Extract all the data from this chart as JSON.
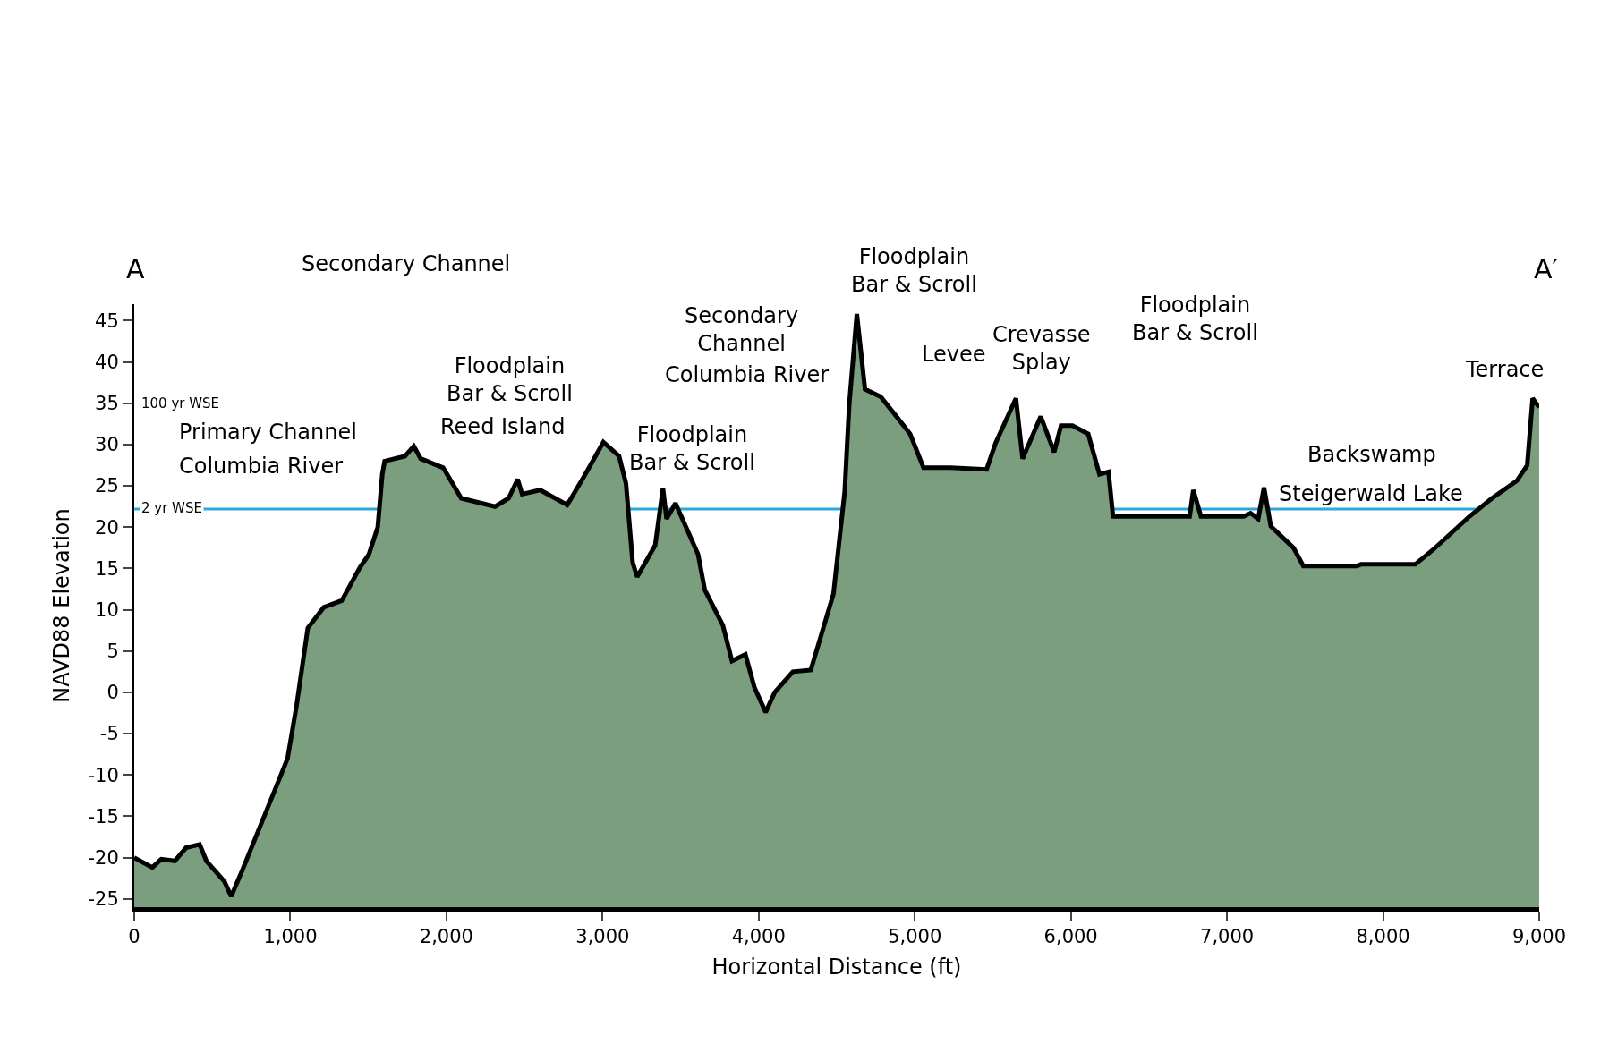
{
  "chart_data": {
    "type": "area",
    "xlabel": "Horizontal Distance (ft)",
    "ylabel": "NAVD88 Elevation",
    "color": "#7a9e7e",
    "x": [
      0,
      116,
      173,
      260,
      332,
      419,
      462,
      578,
      621,
      693,
      867,
      982,
      1040,
      1112,
      1214,
      1329,
      1445,
      1503,
      1560,
      1589,
      1604,
      1734,
      1791,
      1835,
      1979,
      2095,
      2312,
      2398,
      2456,
      2485,
      2600,
      2774,
      2889,
      3005,
      3106,
      3150,
      3193,
      3222,
      3337,
      3387,
      3410,
      3467,
      3612,
      3655,
      3771,
      3829,
      3915,
      3973,
      4045,
      4103,
      4219,
      4334,
      4479,
      4551,
      4580,
      4629,
      4681,
      4782,
      4883,
      4970,
      5056,
      5229,
      5460,
      5518,
      5648,
      5691,
      5807,
      5893,
      5937,
      6010,
      6111,
      6183,
      6241,
      6270,
      6761,
      6784,
      6833,
      7107,
      7151,
      7200,
      7237,
      7281,
      7426,
      7489,
      7830,
      7859,
      8206,
      8322,
      8553,
      8697,
      8856,
      8923,
      8958,
      9000
    ],
    "values": [
      -20,
      -21.2,
      -20.2,
      -20.4,
      -18.8,
      -18.4,
      -20.4,
      -22.9,
      -24.7,
      -21.5,
      -13.4,
      -8,
      -1.6,
      7.8,
      10.3,
      11.1,
      15.1,
      16.7,
      20,
      26.4,
      28,
      28.6,
      29.8,
      28.3,
      27.2,
      23.5,
      22.5,
      23.5,
      25.8,
      24,
      24.5,
      22.7,
      26.4,
      30.3,
      28.6,
      25.3,
      15.7,
      14,
      17.8,
      24.7,
      21,
      22.9,
      16.7,
      12.4,
      8.1,
      3.8,
      4.6,
      0.6,
      -2.4,
      0,
      2.5,
      2.7,
      11.9,
      24.3,
      34.8,
      45.8,
      36.7,
      35.8,
      33.4,
      31.3,
      27.2,
      27.2,
      27,
      30.2,
      35.6,
      28.3,
      33.4,
      29.1,
      32.3,
      32.3,
      31.3,
      26.4,
      26.7,
      21.3,
      21.3,
      24.5,
      21.3,
      21.3,
      21.7,
      21,
      24.8,
      20.1,
      17.5,
      15.3,
      15.3,
      15.5,
      15.5,
      17.3,
      21.3,
      23.5,
      25.6,
      27.5,
      35.6,
      34.5
    ],
    "xlim": [
      0,
      9000
    ],
    "ylim": [
      -26,
      47
    ],
    "xticks": [
      0,
      {
        "value": 1000,
        "label": "1,000"
      },
      {
        "value": 2000,
        "label": "2,000"
      },
      {
        "value": 3000,
        "label": "3,000"
      },
      {
        "value": 4000,
        "label": "4,000"
      },
      {
        "value": 5000,
        "label": "5,000"
      },
      {
        "value": 6000,
        "label": "6,000"
      },
      {
        "value": 7000,
        "label": "7,000"
      },
      {
        "value": 8000,
        "label": "8,000"
      },
      {
        "value": 9000,
        "label": "9,000"
      }
    ],
    "yticks": [
      -25,
      -20,
      -15,
      -10,
      -5,
      0,
      5,
      10,
      15,
      20,
      25,
      30,
      35,
      40,
      45
    ],
    "grid": false,
    "ref_lines": [
      {
        "axis": "y",
        "value": 22.2,
        "label": "2 yr WSE",
        "color": "#29abe2"
      }
    ],
    "annotations": [
      "A",
      "A′",
      "100 yr WSE",
      "Primary Channel",
      "Columbia River",
      "Secondary Channel",
      "Floodplain\nBar & Scroll",
      "Reed Island",
      "Secondary\nChannel",
      "Columbia River",
      "Floodplain\nBar & Scroll",
      "Floodplain\nBar & Scroll",
      "Levee",
      "Crevasse\nSplay",
      "Floodplain\nBar & Scroll",
      "Backswamp",
      "Steigerwald Lake",
      "Terrace"
    ]
  }
}
